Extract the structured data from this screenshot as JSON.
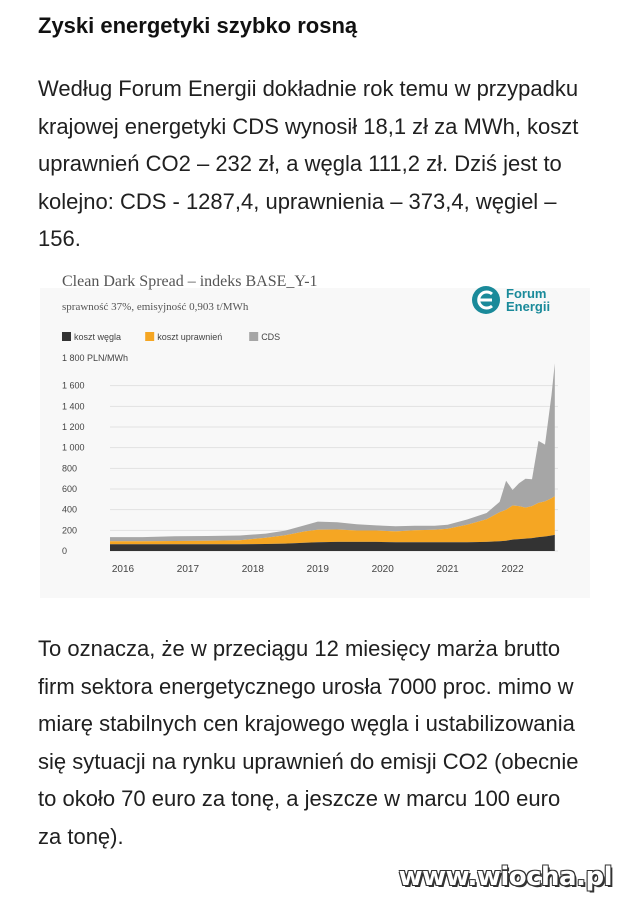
{
  "article": {
    "headline": "Zyski energetyki szybko rosną",
    "paragraph1": "Według Forum Energii dokładnie rok temu w przypadku krajowej energetyki CDS wynosił 18,1 zł za MWh, koszt uprawnień CO2 – 232 zł, a węgla 111,2 zł. Dziś jest to kolejno: CDS - 1287,4, uprawnienia – 373,4, węgiel – 156.",
    "paragraph2": "To oznacza, że w przeciągu 12 miesięcy marża brutto firm sektora energetycznego urosła 7000 proc. mimo w miarę stabilnych cen krajowego węgla i ustabilizowania się sytuacji na rynku uprawnień do emisji CO2 (obecnie to około 70 euro za tonę, a jeszcze w marcu 100 euro za tonę)."
  },
  "watermark": "www.wiocha.pl",
  "brand": {
    "line1": "Forum",
    "line2": "Energii",
    "color": "#1a8a9a"
  },
  "chart_data": {
    "type": "area",
    "stacked": true,
    "title": "Clean Dark Spread – indeks BASE_Y-1",
    "subtitle": "sprawność 37%, emisyjność 0,903 t/MWh",
    "ylabel": "1 800 PLN/MWh",
    "ylim": [
      0,
      1800
    ],
    "xlim": [
      2015.8,
      2022.7
    ],
    "yticks": [
      {
        "v": 0,
        "label": "0"
      },
      {
        "v": 200,
        "label": "200"
      },
      {
        "v": 400,
        "label": "400"
      },
      {
        "v": 600,
        "label": "600"
      },
      {
        "v": 800,
        "label": "800"
      },
      {
        "v": 1000,
        "label": "1 000"
      },
      {
        "v": 1200,
        "label": "1 200"
      },
      {
        "v": 1400,
        "label": "1 400"
      },
      {
        "v": 1600,
        "label": "1 600"
      }
    ],
    "xticks": [
      {
        "v": 2016,
        "label": "2016"
      },
      {
        "v": 2017,
        "label": "2017"
      },
      {
        "v": 2018,
        "label": "2018"
      },
      {
        "v": 2019,
        "label": "2019"
      },
      {
        "v": 2020,
        "label": "2020"
      },
      {
        "v": 2021,
        "label": "2021"
      },
      {
        "v": 2022,
        "label": "2022"
      }
    ],
    "grid": true,
    "legend_position": "top-left",
    "x": [
      2015.8,
      2016.3,
      2016.8,
      2017.3,
      2017.8,
      2018.2,
      2018.5,
      2018.8,
      2019.0,
      2019.3,
      2019.6,
      2019.9,
      2020.2,
      2020.5,
      2020.8,
      2021.0,
      2021.3,
      2021.6,
      2021.8,
      2021.9,
      2022.0,
      2022.1,
      2022.2,
      2022.3,
      2022.4,
      2022.5,
      2022.6,
      2022.65
    ],
    "series": [
      {
        "name": "koszt węgla",
        "color": "#333333",
        "values": [
          65,
          65,
          65,
          65,
          65,
          68,
          72,
          80,
          85,
          88,
          88,
          88,
          85,
          85,
          85,
          85,
          85,
          88,
          95,
          100,
          110,
          115,
          120,
          125,
          135,
          140,
          150,
          156
        ]
      },
      {
        "name": "koszt uprawnień",
        "color": "#f5a623",
        "values": [
          30,
          30,
          32,
          35,
          40,
          60,
          80,
          110,
          120,
          120,
          110,
          110,
          105,
          115,
          120,
          130,
          170,
          220,
          280,
          300,
          330,
          320,
          300,
          310,
          330,
          340,
          360,
          373
        ]
      },
      {
        "name": "CDS",
        "color": "#a6a6a6",
        "values": [
          40,
          40,
          45,
          45,
          45,
          40,
          45,
          60,
          80,
          70,
          60,
          50,
          50,
          45,
          40,
          40,
          50,
          60,
          100,
          280,
          150,
          220,
          280,
          260,
          600,
          550,
          1000,
          1287
        ]
      }
    ]
  }
}
